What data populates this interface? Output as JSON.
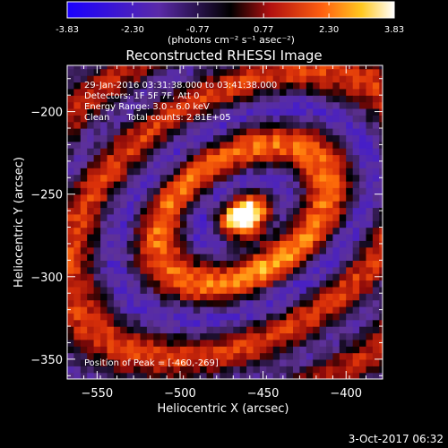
{
  "colorbar": {
    "tick_values": [
      -3.83,
      -2.3,
      -0.77,
      0.77,
      2.3,
      3.83
    ],
    "tick_labels": [
      "-3.83",
      "-2.30",
      "-0.77",
      "0.77",
      "2.30",
      "3.83"
    ],
    "units_label": "(photons cm⁻² s⁻¹ asec⁻²)",
    "range": [
      -3.83,
      3.83
    ],
    "colormap": "blue-purple-black-red-orange-yellow-white"
  },
  "annotations": {
    "time_range": "29-Jan-2016 03:31:38.000 to 03:41:38.000",
    "detectors": "Detectors: 1F 5F 7F, Att 0",
    "energy": "Energy Range: 3.0 - 6.0 keV",
    "algorithm": "Clean      Total counts: 2.81E+05",
    "peak": "Position of Peak = [-460,-269]"
  },
  "footer": {
    "timestamp": "3-Oct-2017 06:32"
  },
  "chart_data": {
    "type": "heatmap",
    "title": "Reconstructed RHESSI Image",
    "xlabel": "Heliocentric X (arcsec)",
    "ylabel": "Heliocentric Y (arcsec)",
    "xlim": [
      -568,
      -378
    ],
    "ylim": [
      -362,
      -172
    ],
    "xticks": [
      -550,
      -500,
      -450,
      -400
    ],
    "xtick_labels": [
      "−550",
      "−500",
      "−450",
      "−400"
    ],
    "yticks": [
      -200,
      -250,
      -300,
      -350
    ],
    "ytick_labels": [
      "−200",
      "−250",
      "−300",
      "−350"
    ],
    "peak_position": [
      -460,
      -269
    ],
    "value_range": [
      -3.83,
      3.83
    ],
    "structure": "concentric elliptical ring pattern centred near (-460,-262); bright yellow/white core ridge around the peak, alternating blue (negative) and red/orange (positive) sidelobe rings"
  }
}
